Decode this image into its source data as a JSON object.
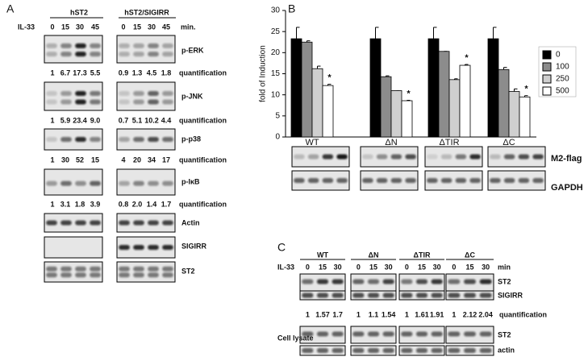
{
  "panel_a": {
    "label": "A",
    "treatment": "IL-33",
    "groups": [
      "hST2",
      "hST2/SIGIRR"
    ],
    "times": [
      "0",
      "15",
      "30",
      "45"
    ],
    "time_unit": "min.",
    "quant_label": "quantification",
    "blots": [
      {
        "name": "p-ERK",
        "left_quant": [
          "1",
          "6.7",
          "17.3",
          "5.5"
        ],
        "right_quant": [
          "0.9",
          "1.3",
          "4.5",
          "1.8"
        ]
      },
      {
        "name": "p-JNK",
        "left_quant": [
          "1",
          "5.9",
          "23.4",
          "9.0"
        ],
        "right_quant": [
          "0.7",
          "5.1",
          "10.2",
          "4.4"
        ]
      },
      {
        "name": "p-p38",
        "left_quant": [
          "1",
          "30",
          "52",
          "15"
        ],
        "right_quant": [
          "4",
          "20",
          "34",
          "17"
        ]
      },
      {
        "name": "p-IκB",
        "left_quant": [
          "1",
          "3.1",
          "1.8",
          "3.9"
        ],
        "right_quant": [
          "0.8",
          "2.0",
          "1.4",
          "1.7"
        ]
      },
      {
        "name": "Actin"
      },
      {
        "name": "SIGIRR"
      },
      {
        "name": "ST2"
      }
    ]
  },
  "chart_data": {
    "type": "bar",
    "panel_label": "B",
    "y_label": "fold of Induction",
    "categories": [
      "WT",
      "ΔN",
      "ΔTIR",
      "ΔC"
    ],
    "series": [
      {
        "name": "0",
        "color": "#000000",
        "values": [
          23.3,
          23.3,
          23.3,
          23.3
        ],
        "errors": [
          2.7,
          2.7,
          2.7,
          2.7
        ]
      },
      {
        "name": "100",
        "color": "#8c8c8c",
        "values": [
          22.5,
          14.3,
          20.3,
          16
        ],
        "errors": [
          0.3,
          0.2,
          0,
          0.5
        ]
      },
      {
        "name": "250",
        "color": "#cfcfcf",
        "values": [
          16.2,
          11,
          13.6,
          10.8
        ],
        "errors": [
          0.6,
          0,
          0.2,
          0.6
        ]
      },
      {
        "name": "500",
        "color": "#ffffff",
        "values": [
          12.2,
          8.6,
          17,
          9.5
        ],
        "errors": [
          0.3,
          0.1,
          0.2,
          0.3
        ]
      }
    ],
    "significance": [
      "*",
      "*",
      "*",
      "*"
    ],
    "ylim": [
      0,
      30
    ],
    "yticks": [
      0,
      5,
      10,
      15,
      20,
      25,
      30
    ],
    "grid": false
  },
  "panel_b_blots": [
    "M2-flag",
    "GAPDH"
  ],
  "panel_c": {
    "label": "C",
    "treatment": "IL-33",
    "groups": [
      "WT",
      "ΔN",
      "ΔTIR",
      "ΔC"
    ],
    "times": [
      "0",
      "15",
      "30"
    ],
    "time_unit": "min",
    "blots": [
      "ST2",
      "SIGIRR"
    ],
    "quant_label": "quantification",
    "quant": [
      [
        "1",
        "1.57",
        "1.7"
      ],
      [
        "1",
        "1.1",
        "1.54"
      ],
      [
        "1",
        "1.61",
        "1.91"
      ],
      [
        "1",
        "2.12",
        "2.04"
      ]
    ],
    "lysate_label": "Cell lysate",
    "lysate_blots": [
      "ST2",
      "actin"
    ]
  }
}
